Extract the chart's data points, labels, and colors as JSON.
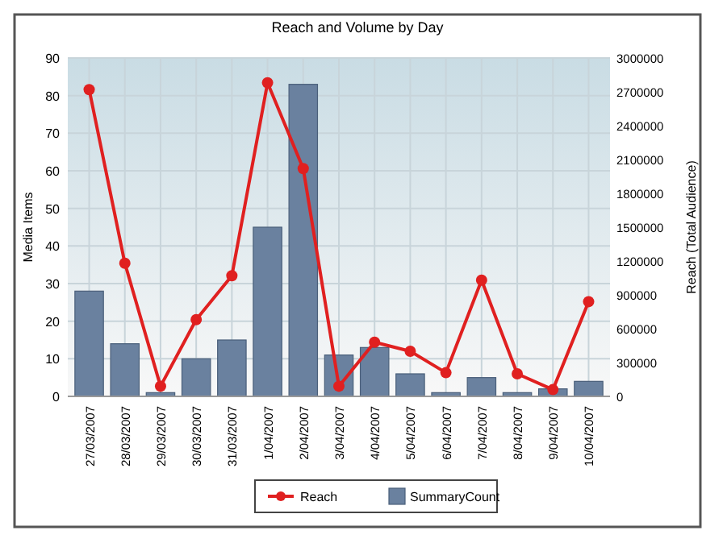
{
  "chart_data": {
    "type": "bar",
    "title": "Reach and Volume by Day",
    "ylabel": "Media Items",
    "y2label": "Reach (Total Audience)",
    "categories": [
      "27/03/2007",
      "28/03/2007",
      "29/03/2007",
      "30/03/2007",
      "31/03/2007",
      "1/04/2007",
      "2/04/2007",
      "3/04/2007",
      "4/04/2007",
      "5/04/2007",
      "6/04/2007",
      "7/04/2007",
      "8/04/2007",
      "9/04/2007",
      "10/04/2007"
    ],
    "series": [
      {
        "name": "Reach",
        "type": "line",
        "axis": "y2",
        "color": "#e02020",
        "marker": "circle",
        "values": [
          2720000,
          1180000,
          90000,
          680000,
          1070000,
          2780000,
          2020000,
          90000,
          480000,
          400000,
          210000,
          1030000,
          200000,
          60000,
          840000
        ]
      },
      {
        "name": "SummaryCount",
        "color": "#6a819f",
        "values": [
          28,
          14,
          1,
          10,
          15,
          45,
          83,
          11,
          13,
          6,
          1,
          5,
          1,
          2,
          4
        ]
      }
    ],
    "ylim": [
      0,
      90
    ],
    "yticks": [
      0,
      10,
      20,
      30,
      40,
      50,
      60,
      70,
      80,
      90
    ],
    "y2lim": [
      0,
      3000000
    ],
    "y2ticks": [
      0,
      300000,
      600000,
      900000,
      1200000,
      1500000,
      1800000,
      2100000,
      2400000,
      2700000,
      3000000
    ],
    "grid": true,
    "legend": "bottom"
  }
}
